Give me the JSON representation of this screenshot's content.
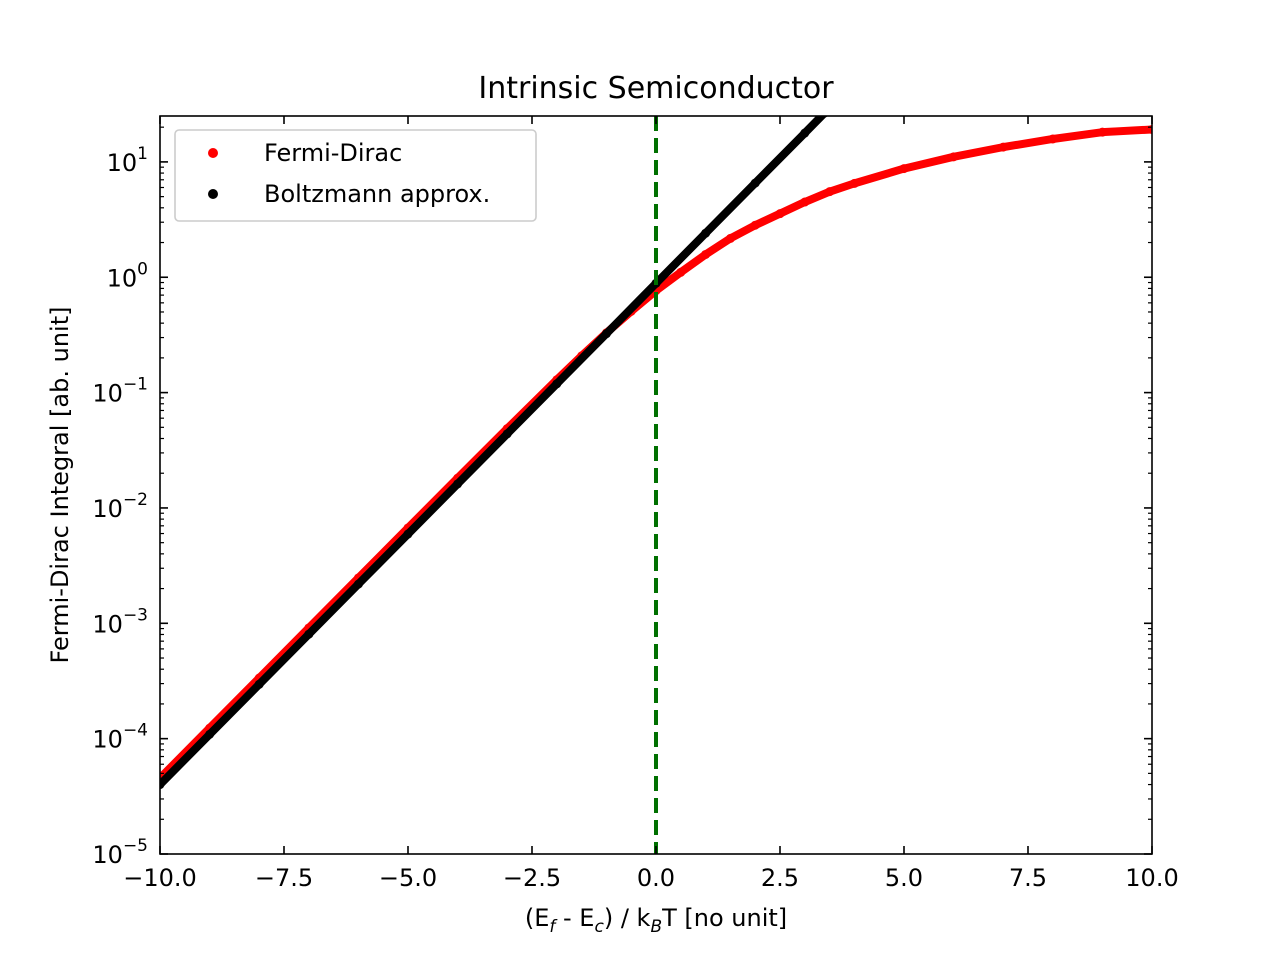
{
  "chart_data": {
    "type": "scatter",
    "title": "Intrinsic Semiconductor",
    "xlabel": {
      "prefix": "(E",
      "sub1": "f",
      "mid": " - E",
      "sub2": "c",
      "mid2": ") / k",
      "sub3": "B",
      "suffix": "T [no unit]"
    },
    "ylabel": "Fermi-Dirac Integral [ab. unit]",
    "xlim": [
      -10,
      10
    ],
    "ylim": [
      1e-05,
      25
    ],
    "yscale": "log",
    "xticks": [
      -10,
      -7.5,
      -5,
      -2.5,
      0,
      2.5,
      5,
      7.5,
      10
    ],
    "xtick_labels": [
      "−10.0",
      "−7.5",
      "−5.0",
      "−2.5",
      "0.0",
      "2.5",
      "5.0",
      "7.5",
      "10.0"
    ],
    "yticks": [
      {
        "value": 10,
        "base": "10",
        "exp": "1"
      },
      {
        "value": 1,
        "base": "10",
        "exp": "0"
      },
      {
        "value": 0.1,
        "base": "10",
        "exp": "−1"
      },
      {
        "value": 0.01,
        "base": "10",
        "exp": "−2"
      },
      {
        "value": 0.001,
        "base": "10",
        "exp": "−3"
      },
      {
        "value": 0.0001,
        "base": "10",
        "exp": "−4"
      },
      {
        "value": 1e-05,
        "base": "10",
        "exp": "−5"
      }
    ],
    "vline": {
      "x": 0,
      "color": "#007000",
      "style": "dashed"
    },
    "legend": {
      "position": "upper-left"
    },
    "series": [
      {
        "name": "Fermi-Dirac",
        "color": "#ff0000",
        "x": [
          -10,
          -9,
          -8,
          -7,
          -6,
          -5,
          -4,
          -3,
          -2,
          -1.5,
          -1,
          -0.5,
          0,
          0.5,
          1,
          1.5,
          2,
          2.5,
          3,
          3.5,
          4,
          5,
          6,
          7,
          8,
          9,
          10
        ],
        "y": [
          4.54e-05,
          0.0001234,
          0.0003354,
          0.000911,
          0.002472,
          0.00671,
          0.01814,
          0.04875,
          0.1292,
          0.208,
          0.3293,
          0.5066,
          0.7651,
          1.1048,
          1.5756,
          2.1724,
          2.824,
          3.56,
          4.488,
          5.52,
          6.512,
          8.75,
          11.068,
          13.43,
          15.8,
          18.1,
          19.1
        ]
      },
      {
        "name": "Boltzmann approx.",
        "color": "#000000",
        "x": [
          -10,
          -9,
          -8,
          -7,
          -6,
          -5,
          -4,
          -3,
          -2,
          -1,
          0,
          1,
          2,
          3,
          3.4
        ],
        "y": [
          4e-05,
          0.0001089,
          0.0002959,
          0.000804,
          0.002186,
          0.005941,
          0.01615,
          0.0439,
          0.1193,
          0.3243,
          0.8862,
          2.409,
          6.548,
          17.8,
          26.6
        ]
      }
    ]
  }
}
